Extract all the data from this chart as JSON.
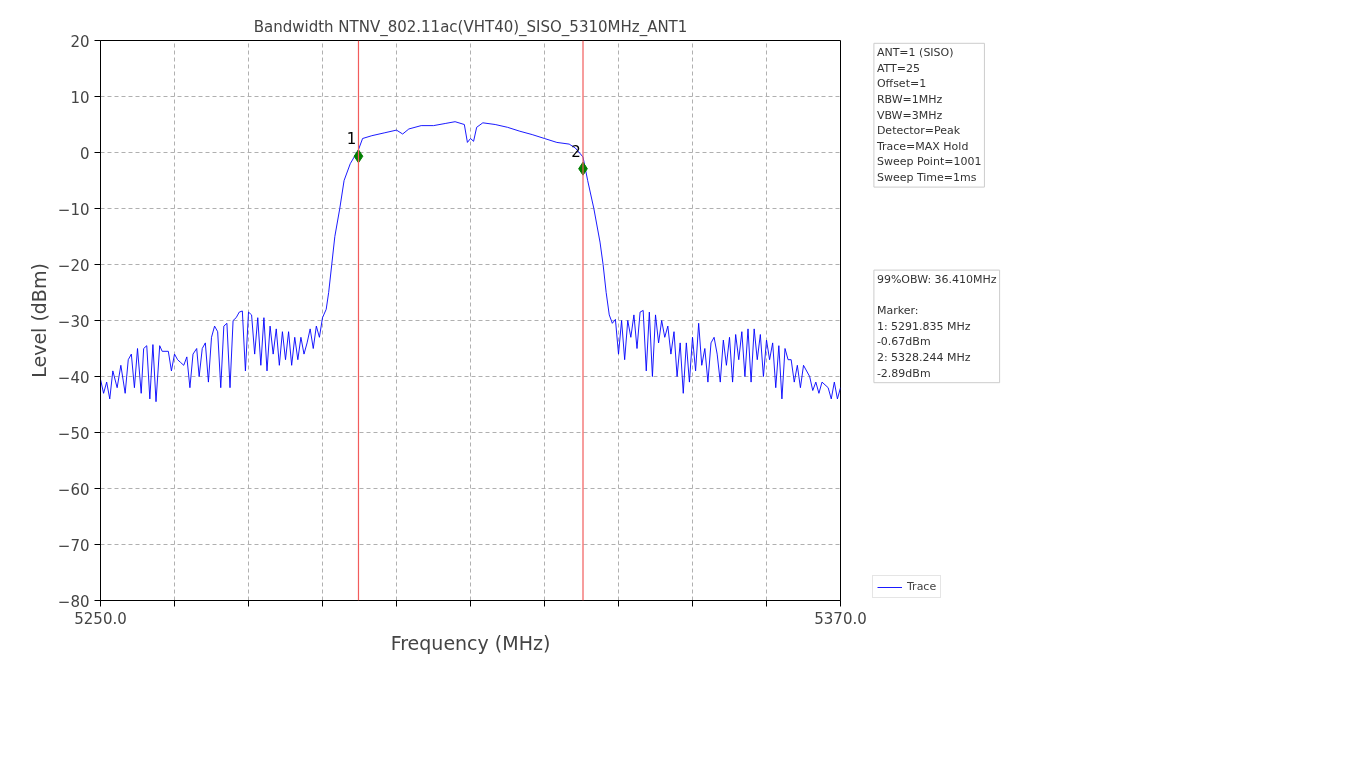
{
  "chart_data": {
    "type": "line",
    "title": "Bandwidth NTNV_802.11ac(VHT40)_SISO_5310MHz_ANT1",
    "xlabel": "Frequency (MHz)",
    "ylabel": "Level (dBm)",
    "xlim": [
      5250,
      5370
    ],
    "ylim": [
      -80,
      20
    ],
    "xticks": [
      {
        "value": 5250,
        "label": "5250.0"
      },
      {
        "value": 5262,
        "label": null
      },
      {
        "value": 5274,
        "label": null
      },
      {
        "value": 5286,
        "label": null
      },
      {
        "value": 5298,
        "label": null
      },
      {
        "value": 5310,
        "label": null
      },
      {
        "value": 5322,
        "label": null
      },
      {
        "value": 5334,
        "label": null
      },
      {
        "value": 5346,
        "label": null
      },
      {
        "value": 5358,
        "label": null
      },
      {
        "value": 5370,
        "label": "5370.0"
      }
    ],
    "yticks": [
      {
        "value": -80,
        "label": "−80"
      },
      {
        "value": -70,
        "label": "−70"
      },
      {
        "value": -60,
        "label": "−60"
      },
      {
        "value": -50,
        "label": "−50"
      },
      {
        "value": -40,
        "label": "−40"
      },
      {
        "value": -30,
        "label": "−30"
      },
      {
        "value": -20,
        "label": "−20"
      },
      {
        "value": -10,
        "label": "−10"
      },
      {
        "value": 0,
        "label": "0"
      },
      {
        "value": 10,
        "label": "10"
      },
      {
        "value": 20,
        "label": "20"
      }
    ],
    "grid": true,
    "legend": "bottom right",
    "line_style": "solid",
    "series": [
      {
        "name": "Trace",
        "color": "#0000ff",
        "x": [
          5250,
          5250.5,
          5251,
          5251.5,
          5252,
          5252.7,
          5253.3,
          5254,
          5254.5,
          5255,
          5255.5,
          5256,
          5256.6,
          5257,
          5257.5,
          5258,
          5258.5,
          5259,
          5259.6,
          5260,
          5261,
          5261.5,
          5262,
          5262.5,
          5263,
          5263.5,
          5264,
          5264.5,
          5265,
          5265.6,
          5266,
          5266.5,
          5267,
          5267.5,
          5268,
          5268.5,
          5269,
          5269.5,
          5270,
          5270.5,
          5271,
          5271.5,
          5272,
          5272.5,
          5273,
          5273.5,
          5274,
          5274.5,
          5275,
          5275.5,
          5276,
          5276.5,
          5277,
          5277.5,
          5278,
          5278.5,
          5279,
          5279.5,
          5280,
          5280.5,
          5281,
          5281.5,
          5282,
          5282.5,
          5283,
          5283.5,
          5284,
          5284.5,
          5285,
          5285.5,
          5286,
          5286.6,
          5287,
          5287.5,
          5288,
          5288.8,
          5289.5,
          5290.5,
          5291.835,
          5292.5,
          5294,
          5296,
          5298,
          5299,
          5300,
          5302,
          5304,
          5306,
          5307.5,
          5309,
          5309.5,
          5310,
          5310.5,
          5311,
          5312,
          5314,
          5316,
          5318,
          5320,
          5322,
          5324,
          5326,
          5327,
          5328.244,
          5329,
          5330,
          5331,
          5331.5,
          5332,
          5332.5,
          5333,
          5333.5,
          5334,
          5334.5,
          5335,
          5335.5,
          5336,
          5336.5,
          5337,
          5337.5,
          5338,
          5338.5,
          5339,
          5339.5,
          5340,
          5340.5,
          5341,
          5341.5,
          5342,
          5342.5,
          5343,
          5343.5,
          5344,
          5344.5,
          5345,
          5345.5,
          5346,
          5346.5,
          5347,
          5347.5,
          5348,
          5348.5,
          5349,
          5349.5,
          5350,
          5350.5,
          5351,
          5351.5,
          5352,
          5352.5,
          5353,
          5353.5,
          5354,
          5354.5,
          5355,
          5355.5,
          5356,
          5356.5,
          5357,
          5357.5,
          5358,
          5358.5,
          5359,
          5359.5,
          5360,
          5360.5,
          5361,
          5361.5,
          5362,
          5362.5,
          5363,
          5363.5,
          5364,
          5365,
          5365.5,
          5366,
          5366.5,
          5367,
          5368,
          5368.5,
          5369,
          5369.5,
          5370
        ],
        "values": [
          -40.5,
          -43,
          -41,
          -44,
          -39,
          -42,
          -38,
          -43,
          -37,
          -36,
          -42,
          -35,
          -43,
          -35,
          -34.5,
          -44,
          -34.3,
          -44.5,
          -34.5,
          -35.5,
          -35.5,
          -39,
          -36,
          -37,
          -37.5,
          -38,
          -36.5,
          -42,
          -36,
          -35,
          -40,
          -35,
          -34,
          -41,
          -33,
          -31,
          -32,
          -42,
          -31,
          -30.5,
          -42,
          -30,
          -29.5,
          -28.5,
          -28.3,
          -39,
          -28.5,
          -29,
          -36,
          -29.5,
          -38,
          -29.5,
          -39,
          -31,
          -36,
          -31.5,
          -38,
          -32,
          -37,
          -32,
          -38,
          -33,
          -37,
          -33,
          -36,
          -34,
          -31.5,
          -35,
          -31,
          -33,
          -29.5,
          -28,
          -25,
          -20,
          -15,
          -10,
          -5,
          -2,
          0.5,
          2.5,
          3,
          3.5,
          4,
          3.3,
          4.2,
          4.8,
          4.8,
          5.2,
          5.5,
          5,
          1.8,
          2.5,
          2,
          4.5,
          5.3,
          5,
          4.5,
          3.8,
          3.2,
          2.5,
          1.8,
          1.5,
          0.8,
          -0.8,
          -5,
          -10,
          -16,
          -20,
          -25,
          -29,
          -30.5,
          -29.8,
          -36,
          -30,
          -37,
          -30,
          -33,
          -29,
          -35,
          -28.5,
          -28.2,
          -39,
          -28.5,
          -40,
          -29,
          -34,
          -30,
          -33,
          -31,
          -36,
          -32,
          -40,
          -34,
          -43,
          -34,
          -41,
          -33,
          -39,
          -30.5,
          -38,
          -35,
          -41,
          -34,
          -33,
          -36,
          -41,
          -33.5,
          -38,
          -33,
          -41,
          -32.5,
          -37,
          -32,
          -40,
          -31.5,
          -41,
          -31.5,
          -37,
          -32.5,
          -40,
          -33.5,
          -37,
          -34,
          -42,
          -34.5,
          -44,
          -35,
          -37,
          -37,
          -41,
          -38,
          -42,
          -38,
          -40,
          -42.5,
          -41,
          -43,
          -41,
          -42,
          -44,
          -41,
          -44,
          -42
        ]
      },
      {
        "color": "#007f00",
        "type": "scatter",
        "marker": "diamond",
        "x": [
          5291.835,
          5328.244
        ],
        "values": [
          -0.67,
          -2.89
        ]
      }
    ],
    "ref_lines": [
      {
        "axis": "x",
        "value": 5291.835,
        "color": "#f25c5c"
      },
      {
        "axis": "x",
        "value": 5328.244,
        "color": "#f25c5c"
      }
    ],
    "annotations": [
      {
        "text": "1",
        "x": 5291.835,
        "y": -0.67
      },
      {
        "text": "2",
        "x": 5328.244,
        "y": -2.89
      },
      "ANT=1 (SISO)\nATT=25\nOffset=1\nRBW=1MHz\nVBW=3MHz\nDetector=Peak\nTrace=MAX Hold\nSweep Point=1001\nSweep Time=1ms",
      "99%OBW: 36.410MHz\n\nMarker:\n1: 5291.835 MHz\n    -0.67dBm\n2: 5328.244 MHz\n    -2.89dBm"
    ]
  }
}
